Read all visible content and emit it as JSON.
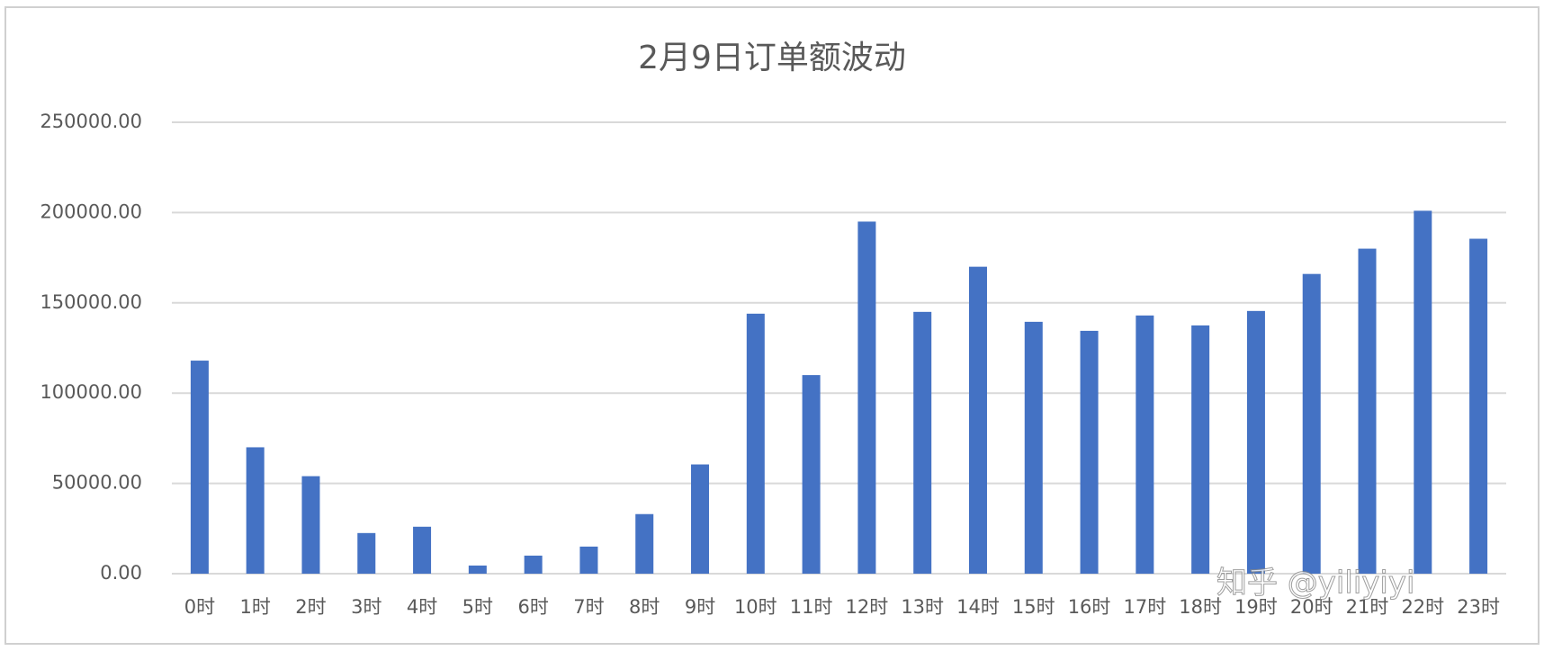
{
  "chart_data": {
    "type": "bar",
    "title": "2月9日订单额波动",
    "categories": [
      "0时",
      "1时",
      "2时",
      "3时",
      "4时",
      "5时",
      "6时",
      "7时",
      "8时",
      "9时",
      "10时",
      "11时",
      "12时",
      "13时",
      "14时",
      "15时",
      "16时",
      "17时",
      "18时",
      "19时",
      "20时",
      "21时",
      "22时",
      "23时"
    ],
    "values": [
      118000,
      70000,
      54000,
      22500,
      26000,
      4500,
      10000,
      15000,
      33000,
      60500,
      144000,
      110000,
      195000,
      145000,
      170000,
      139500,
      134500,
      143000,
      137500,
      145500,
      166000,
      180000,
      201000,
      185500
    ],
    "color": "#4472c4",
    "ylim": [
      0,
      250000
    ],
    "yticks": [
      {
        "value": 0,
        "label": "0.00"
      },
      {
        "value": 50000,
        "label": "50000.00"
      },
      {
        "value": 100000,
        "label": "100000.00"
      },
      {
        "value": 150000,
        "label": "150000.00"
      },
      {
        "value": 200000,
        "label": "200000.00"
      },
      {
        "value": 250000,
        "label": "250000.00"
      }
    ],
    "grid": true,
    "watermark": "知乎 @yiliyiyi"
  }
}
